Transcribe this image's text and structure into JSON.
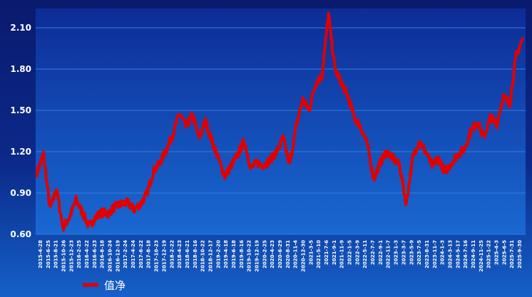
{
  "chart_data": {
    "type": "line",
    "title": "",
    "xlabel": "",
    "ylabel": "",
    "ylim": [
      0.6,
      2.25
    ],
    "yticks": [
      "0.60",
      "0.90",
      "1.20",
      "1.50",
      "1.80",
      "2.10"
    ],
    "grid": true,
    "legend_position": "bottom-left",
    "colors": {
      "line": "#e00000",
      "grid": "#2f7fe0",
      "plot_bg_top": "#0d2c96",
      "plot_bg_bottom": "#1968d2"
    },
    "x_tick_labels": [
      "2015-4-28",
      "2015-6-25",
      "2015-8-21",
      "2015-10-26",
      "2015-12-23",
      "2016-2-25",
      "2016-4-22",
      "2016-6-23",
      "2016-8-18",
      "2016-10-24",
      "2016-12-19",
      "2017-2-24",
      "2017-4-24",
      "2017-6-22",
      "2017-8-18",
      "2017-10-23",
      "2017-12-19",
      "2018-2-22",
      "2018-4-23",
      "2018-6-21",
      "2018-8-16",
      "2018-10-22",
      "2018-12-17",
      "2019-2-20",
      "2019-4-18",
      "2019-6-18",
      "2019-8-16",
      "2019-10-22",
      "2019-12-19",
      "2020-2-25",
      "2020-4-23",
      "2020-6-29",
      "2020-8-31",
      "2020-11-4",
      "2020-12-30",
      "2021-3-5",
      "2021-5-10",
      "2021-7-6",
      "2021-9-1",
      "2021-11-9",
      "2022-1-5",
      "2022-3-9",
      "2022-5-11",
      "2022-7-7",
      "2022-9-1",
      "2022-11-7",
      "2023-1-3",
      "2023-3-7",
      "2023-5-9",
      "2023-7-5",
      "2023-8-31",
      "2023-11-7",
      "2024-1-3",
      "2024-3-13",
      "2024-5-17",
      "2024-7-16",
      "2024-9-11",
      "2024-11-25",
      "2025-1-22",
      "2025-4-3",
      "2025-6-5",
      "2025-7-31",
      "2025-9-30"
    ],
    "series": [
      {
        "name": "值净",
        "values": [
          1.05,
          1.18,
          0.78,
          0.93,
          0.65,
          0.72,
          0.85,
          0.76,
          0.66,
          0.72,
          0.76,
          0.75,
          0.8,
          0.82,
          0.83,
          0.78,
          0.82,
          0.9,
          1.06,
          1.12,
          1.22,
          1.33,
          1.48,
          1.38,
          1.47,
          1.3,
          1.42,
          1.28,
          1.15,
          1.02,
          1.1,
          1.18,
          1.28,
          1.08,
          1.12,
          1.1,
          1.14,
          1.2,
          1.3,
          1.1,
          1.38,
          1.58,
          1.5,
          1.7,
          1.75,
          2.2,
          1.8,
          1.7,
          1.6,
          1.45,
          1.38,
          1.25,
          1.0,
          1.12,
          1.2,
          1.15,
          1.1,
          0.82,
          1.15,
          1.28,
          1.2,
          1.1,
          1.15,
          1.05,
          1.12,
          1.18,
          1.22,
          1.35,
          1.42,
          1.3,
          1.45,
          1.4,
          1.6,
          1.55,
          1.9,
          2.02
        ]
      }
    ]
  },
  "legend": {
    "label": "值净"
  }
}
